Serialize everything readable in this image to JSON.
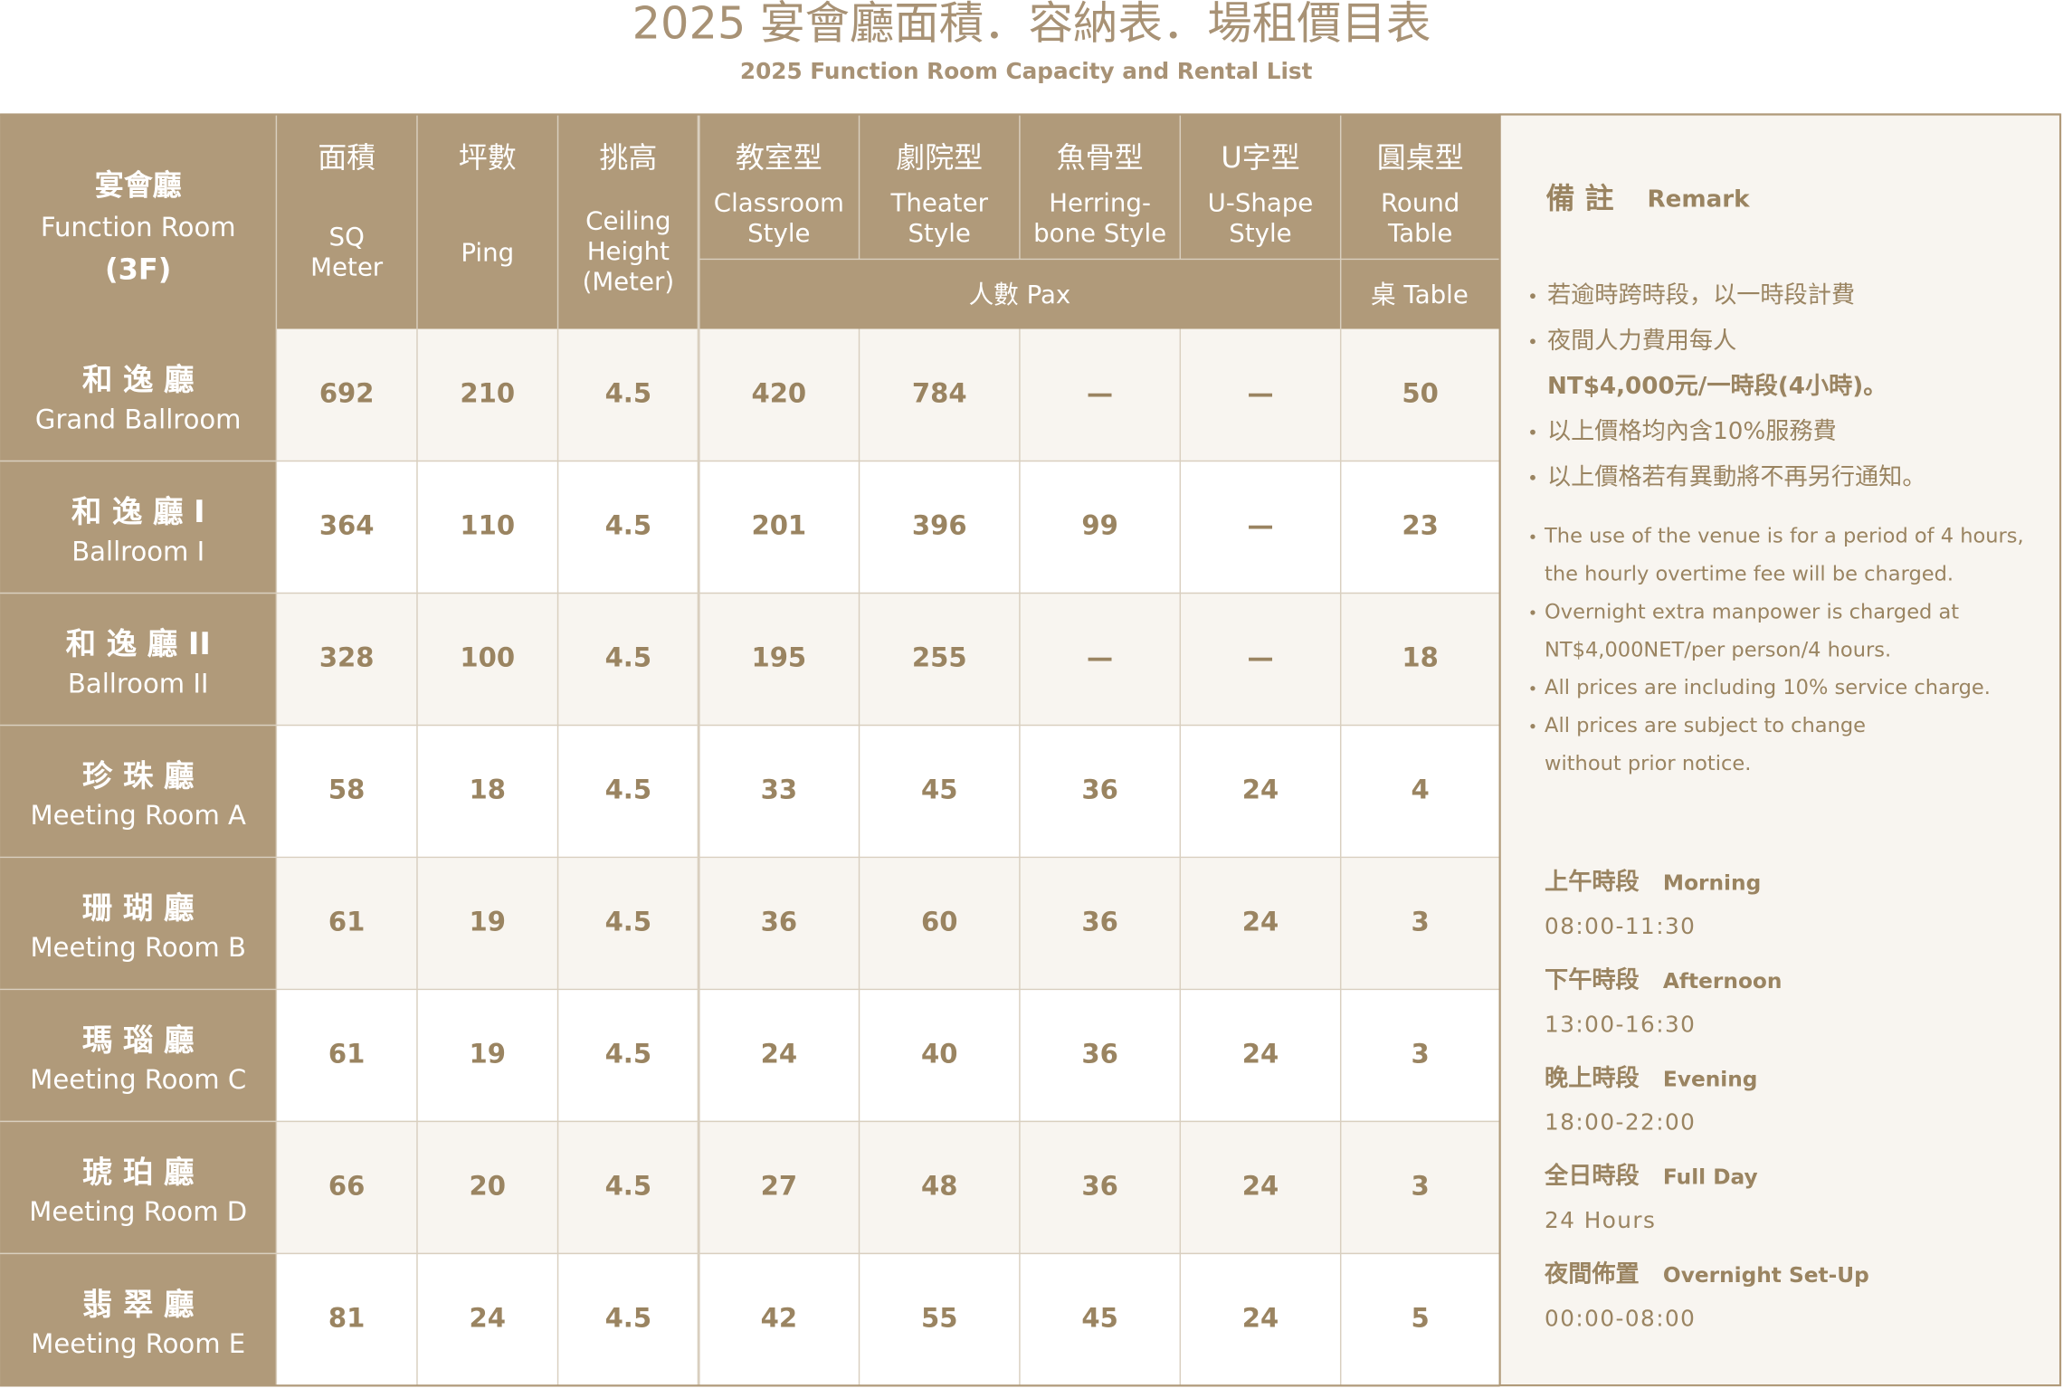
{
  "header": {
    "title": "2025 宴會廳面積．容納表．場租價目表",
    "subtitle": "2025 Function Room Capacity and Rental List"
  },
  "table": {
    "columns": [
      {
        "zh": "宴會廳",
        "en": [
          "Function Room"
        ],
        "note": "(3F)"
      },
      {
        "zh": "面積",
        "en": [
          "SQ",
          "Meter"
        ]
      },
      {
        "zh": "坪數",
        "en": [
          "Ping"
        ]
      },
      {
        "zh": "挑高",
        "en": [
          "Ceiling",
          "Height",
          "(Meter)"
        ]
      },
      {
        "zh": "教室型",
        "en": [
          "Classroom",
          "Style"
        ]
      },
      {
        "zh": "劇院型",
        "en": [
          "Theater",
          "Style"
        ]
      },
      {
        "zh": "魚骨型",
        "en": [
          "Herring-",
          "bone Style"
        ]
      },
      {
        "zh": "U字型",
        "en": [
          "U-Shape",
          "Style"
        ]
      },
      {
        "zh": "圓桌型",
        "en": [
          "Round",
          "Table"
        ]
      }
    ],
    "group_labels": [
      "人數 Pax",
      "桌 Table"
    ],
    "rows": [
      {
        "zh": "和 逸 廳",
        "en": "Grand Ballroom",
        "cells": [
          "692",
          "210",
          "4.5",
          "420",
          "784",
          "—",
          "—",
          "50"
        ]
      },
      {
        "zh": "和 逸 廳 I",
        "en": "Ballroom I",
        "cells": [
          "364",
          "110",
          "4.5",
          "201",
          "396",
          "99",
          "—",
          "23"
        ]
      },
      {
        "zh": "和 逸 廳 II",
        "en": "Ballroom II",
        "cells": [
          "328",
          "100",
          "4.5",
          "195",
          "255",
          "—",
          "—",
          "18"
        ]
      },
      {
        "zh": "珍 珠 廳",
        "en": "Meeting Room A",
        "cells": [
          "58",
          "18",
          "4.5",
          "33",
          "45",
          "36",
          "24",
          "4"
        ]
      },
      {
        "zh": "珊 瑚 廳",
        "en": "Meeting Room B",
        "cells": [
          "61",
          "19",
          "4.5",
          "36",
          "60",
          "36",
          "24",
          "3"
        ]
      },
      {
        "zh": "瑪 瑙 廳",
        "en": "Meeting Room C",
        "cells": [
          "61",
          "19",
          "4.5",
          "24",
          "40",
          "36",
          "24",
          "3"
        ]
      },
      {
        "zh": "琥 珀 廳",
        "en": "Meeting Room D",
        "cells": [
          "66",
          "20",
          "4.5",
          "27",
          "48",
          "36",
          "24",
          "3"
        ]
      },
      {
        "zh": "翡 翠 廳",
        "en": "Meeting Room E",
        "cells": [
          "81",
          "24",
          "4.5",
          "42",
          "55",
          "45",
          "24",
          "5"
        ]
      }
    ]
  },
  "remark": {
    "title_zh": "備 註",
    "title_en": "Remark",
    "notes_zh": [
      [
        "若逾時跨時段，以一時段計費"
      ],
      [
        "夜間人力費用每人",
        "NT$4,000元/一時段(4小時)。"
      ],
      [
        "以上價格均內含10%服務費"
      ],
      [
        "以上價格若有異動將不再另行通知。"
      ]
    ],
    "notes_en": [
      [
        "The use of the venue is for a period of 4 hours,",
        "the hourly overtime fee will be charged."
      ],
      [
        "Overnight extra manpower is charged at",
        "NT$4,000NET/per person/4 hours."
      ],
      [
        "All prices are including 10% service charge."
      ],
      [
        "All prices are subject to change",
        "without prior notice."
      ]
    ],
    "sessions": [
      {
        "zh": "上午時段",
        "en": "Morning",
        "time": "08:00-11:30"
      },
      {
        "zh": "下午時段",
        "en": "Afternoon",
        "time": "13:00-16:30"
      },
      {
        "zh": "晚上時段",
        "en": "Evening",
        "time": "18:00-22:00"
      },
      {
        "zh": "全日時段",
        "en": "Full Day",
        "time": "24 Hours"
      },
      {
        "zh": "夜間佈置",
        "en": "Overnight Set-Up",
        "time": "00:00-08:00"
      }
    ]
  }
}
